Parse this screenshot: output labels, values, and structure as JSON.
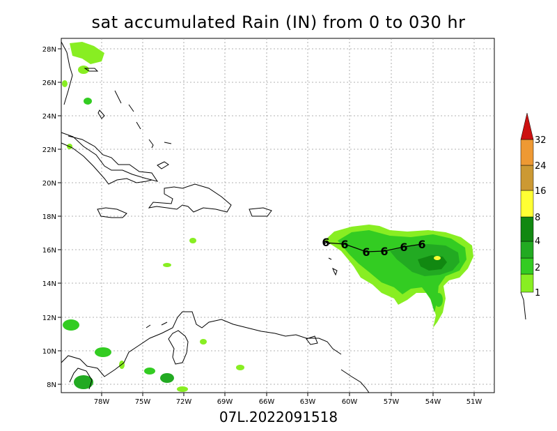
{
  "title": "sat accumulated Rain (IN) from 0 to 030 hr",
  "footer": "07L.2022091518",
  "lon_labels": [
    "78W",
    "75W",
    "72W",
    "69W",
    "66W",
    "63W",
    "60W",
    "57W",
    "54W",
    "51W"
  ],
  "lat_labels": [
    "28N",
    "26N",
    "24N",
    "22N",
    "20N",
    "18N",
    "16N",
    "14N",
    "12N",
    "10N",
    "8N"
  ],
  "colorbar": {
    "labels": [
      "1",
      "2",
      "4",
      "8",
      "16",
      "24",
      "32"
    ],
    "colors": [
      "#88ee22",
      "#33cc22",
      "#22aa22",
      "#118811",
      "#ffff33",
      "#cc9933",
      "#ee9933",
      "#cc1111"
    ]
  },
  "storm_symbol": "hurricane-symbol",
  "track_point_count": 6
}
